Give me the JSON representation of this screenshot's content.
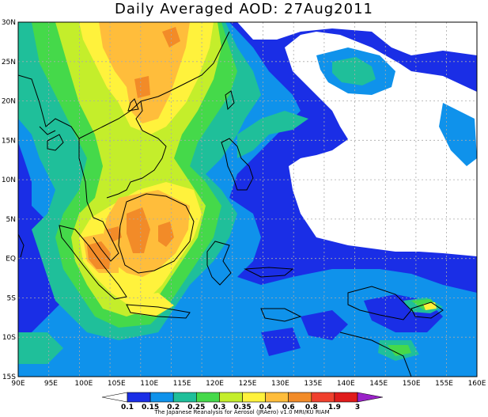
{
  "title": "Daily Averaged AOD: 27Aug2011",
  "map": {
    "lon_labels": [
      "90E",
      "95E",
      "100E",
      "105E",
      "110E",
      "115E",
      "120E",
      "125E",
      "130E",
      "135E",
      "140E",
      "145E",
      "150E",
      "155E",
      "160E"
    ],
    "lat_labels": [
      "30N",
      "25N",
      "20N",
      "15N",
      "10N",
      "5N",
      "EQ",
      "5S",
      "10S",
      "15S"
    ]
  },
  "colorbar": {
    "levels": [
      "0.1",
      "0.15",
      "0.2",
      "0.25",
      "0.3",
      "0.35",
      "0.4",
      "0.6",
      "0.8",
      "1.9",
      "3"
    ],
    "colors": [
      "#ffffff",
      "#1a2ee6",
      "#0f92eb",
      "#1fbf9a",
      "#45d94a",
      "#c4ee2b",
      "#fff23c",
      "#ffbd3b",
      "#f28b28",
      "#f0402d",
      "#e01b1b",
      "#9a22c8"
    ]
  },
  "credit": "The Japanese Reanalysis for Aerosol (JRAero) v1.0 MRI/KU RIAM"
}
